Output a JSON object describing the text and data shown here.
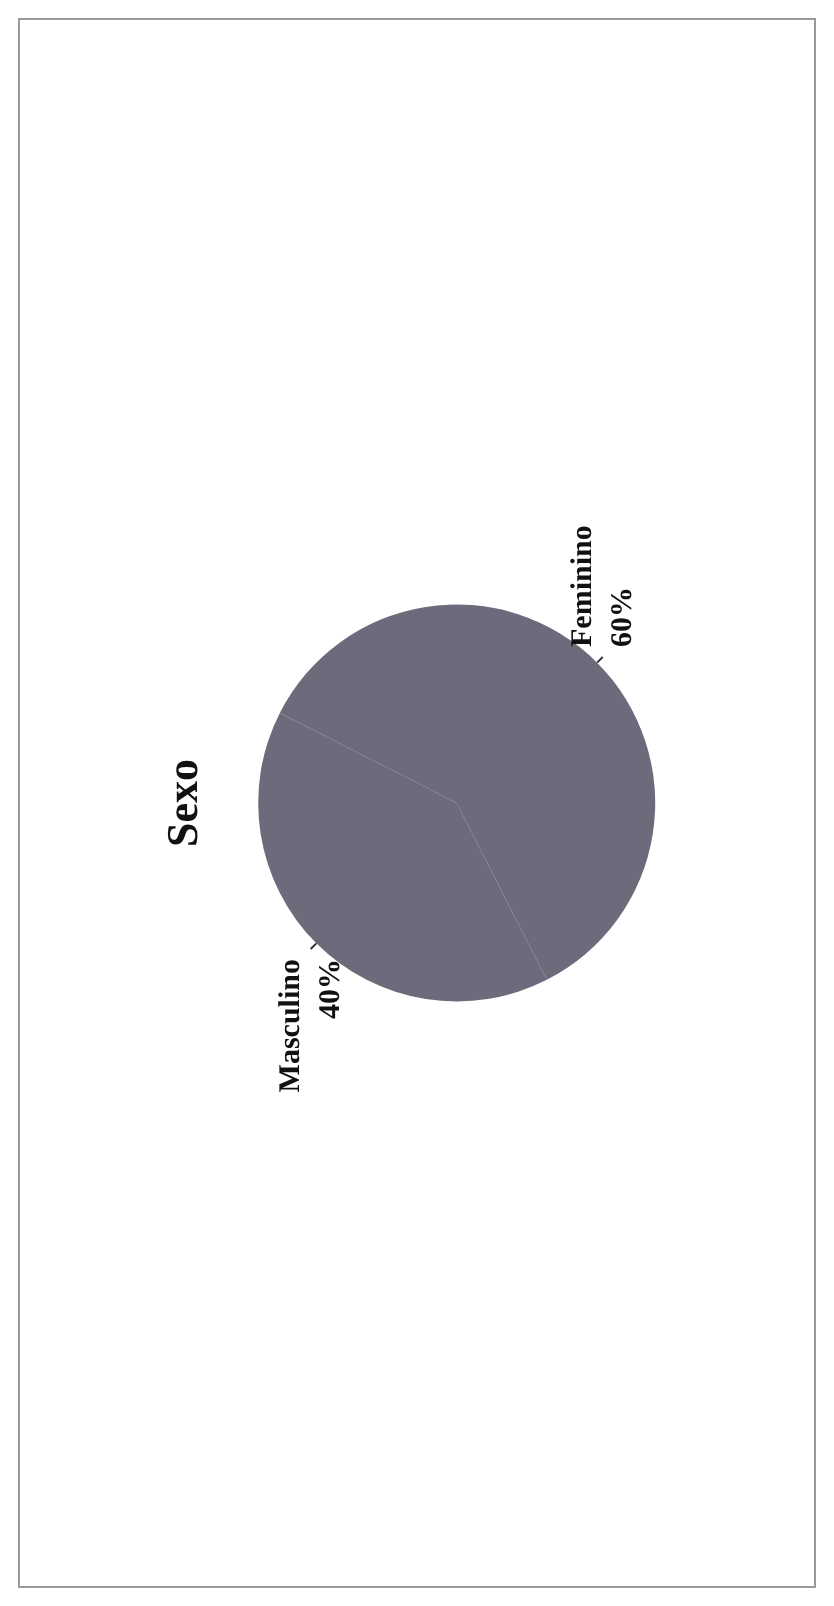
{
  "chart_data": {
    "type": "pie",
    "title": "Sexo",
    "categories": [
      "Feminino",
      "Masculino"
    ],
    "values": [
      60,
      40
    ],
    "value_labels": [
      "60%",
      "40%"
    ],
    "colors": [
      "#6b6b7b",
      "#6b6b7b"
    ]
  }
}
